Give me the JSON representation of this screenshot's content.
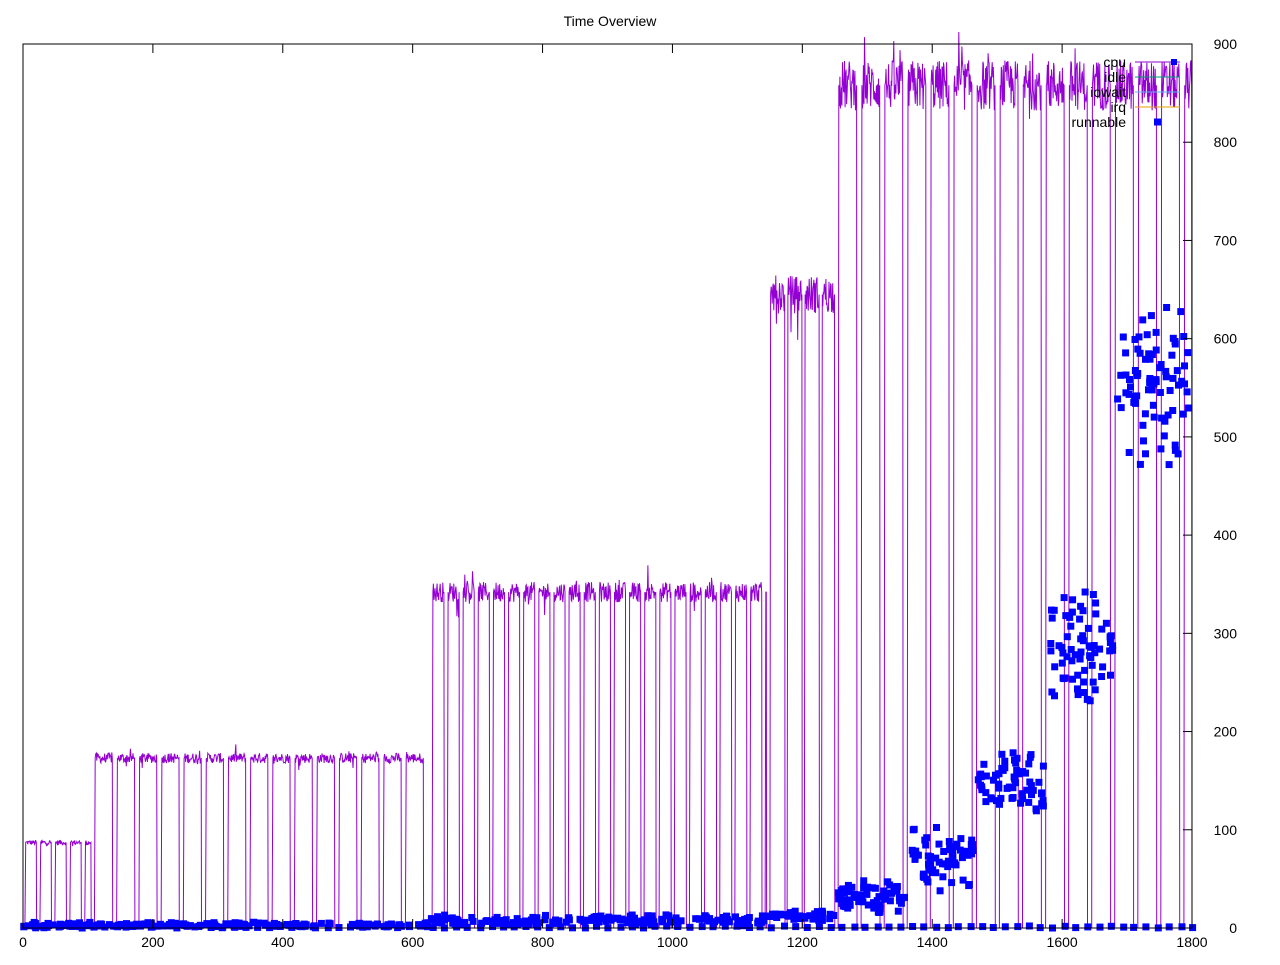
{
  "chart_data": {
    "type": "line",
    "title": "Time Overview",
    "xlim": [
      0,
      1800
    ],
    "ylim": [
      0,
      900
    ],
    "x_ticks": [
      0,
      200,
      400,
      600,
      800,
      1000,
      1200,
      1400,
      1600,
      1800
    ],
    "y_ticks": [
      0,
      100,
      200,
      300,
      400,
      500,
      600,
      700,
      800,
      900
    ],
    "y_axis_side": "right",
    "grid": false,
    "legend_position": "top-right",
    "series": [
      {
        "name": "cpu",
        "color": "#9400d3",
        "style": "line",
        "pattern": "repeated high/low bursts; stepwise plateau levels",
        "phases": [
          {
            "x_start": 3,
            "x_end": 105,
            "high": 87,
            "period": 23,
            "duty": 0.78
          },
          {
            "x_start": 110,
            "x_end": 625,
            "high": 173,
            "period": 34.2,
            "duty": 0.82
          },
          {
            "x_start": 630,
            "x_end": 1145,
            "high": 342,
            "period": 23.3,
            "duty": 0.8
          },
          {
            "x_start": 1150,
            "x_end": 1250,
            "high": 645,
            "period": 26.5,
            "duty": 0.88
          },
          {
            "x_start": 1255,
            "x_end": 1800,
            "high": 858,
            "period": 35.5,
            "duty": 0.82
          }
        ]
      },
      {
        "name": "idle",
        "color": "#009e73",
        "style": "line",
        "values_note": "0 throughout"
      },
      {
        "name": "iowait",
        "color": "#56b4e9",
        "style": "line",
        "values_note": "0 throughout"
      },
      {
        "name": "irq",
        "color": "#e69f00",
        "style": "line",
        "values_note": "0 throughout"
      },
      {
        "name": "runnable",
        "color": "#0000ff",
        "style": "points",
        "clusters": [
          {
            "x_start": 0,
            "x_end": 625,
            "center": 3,
            "spread": 3,
            "count": 180
          },
          {
            "x_start": 625,
            "x_end": 1145,
            "center": 8,
            "spread": 6,
            "count": 160
          },
          {
            "x_start": 1145,
            "x_end": 1250,
            "center": 13,
            "spread": 7,
            "count": 40
          },
          {
            "x_start": 1255,
            "x_end": 1360,
            "center": 30,
            "spread": 20,
            "count": 65
          },
          {
            "x_start": 1365,
            "x_end": 1465,
            "center": 72,
            "spread": 35,
            "count": 65
          },
          {
            "x_start": 1470,
            "x_end": 1575,
            "center": 145,
            "spread": 40,
            "count": 65
          },
          {
            "x_start": 1580,
            "x_end": 1685,
            "center": 285,
            "spread": 65,
            "count": 70
          },
          {
            "x_start": 1685,
            "x_end": 1795,
            "center": 555,
            "spread": 90,
            "count": 80
          }
        ],
        "near_zero_points_every": 18
      }
    ]
  }
}
